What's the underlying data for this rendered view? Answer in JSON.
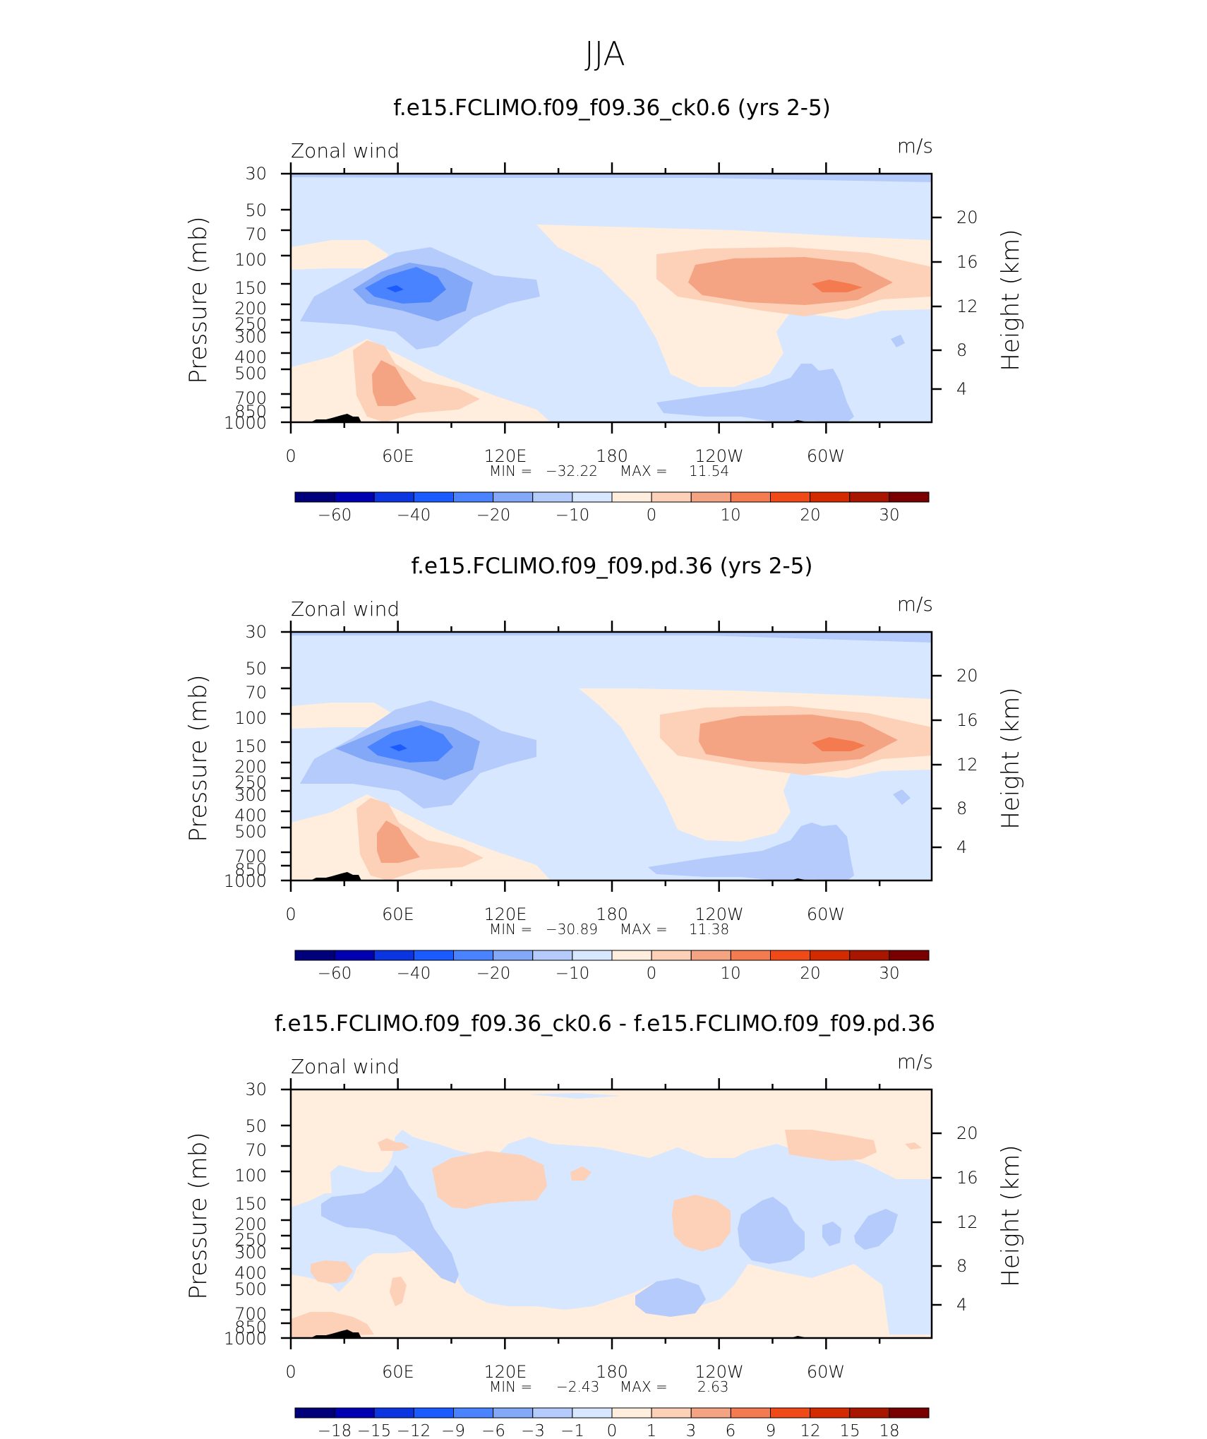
{
  "figure": {
    "title": "JJA"
  },
  "colors": {
    "wind_colorbar": [
      "#00007a",
      "#0000b3",
      "#0b35e0",
      "#1a5bff",
      "#4a83ff",
      "#84a8f8",
      "#b4cbfb",
      "#d6e7ff",
      "#ffeedd",
      "#fdd0b8",
      "#f5a483",
      "#f47a50",
      "#f04a18",
      "#d42a00",
      "#a81600",
      "#7a0000"
    ],
    "diff_colorbar": [
      "#00007a",
      "#0000b3",
      "#0b35e0",
      "#1a5bff",
      "#4a83ff",
      "#84a8f8",
      "#b4cbfb",
      "#d6e7ff",
      "#ffeedd",
      "#fdd0b8",
      "#f5a483",
      "#f47a50",
      "#f04a18",
      "#d42a00",
      "#a81600",
      "#7a0000"
    ],
    "topography": "#000000"
  },
  "chart_data": [
    {
      "type": "contour",
      "title": "f.e15.FCLIMO.f09_f09.36_ck0.6 (yrs 2-5)",
      "left_label": "Zonal wind",
      "units_label": "m/s",
      "ylabel": "Pressure (mb)",
      "ylabel_right": "Height (km)",
      "xticks": [
        "0",
        "60E",
        "120E",
        "180",
        "120W",
        "60W"
      ],
      "yticks": [
        "30",
        "50",
        "70",
        "100",
        "150",
        "200",
        "250",
        "300",
        "400",
        "500",
        "700",
        "850",
        "1000"
      ],
      "yticks_right": [
        "20",
        "16",
        "12",
        "8",
        "4"
      ],
      "min_label": "MIN =",
      "min": "−32.22",
      "max_label": "MAX =",
      "max": "11.54",
      "colorbar_labels": [
        "−60",
        "−40",
        "−20",
        "−10",
        "0",
        "10",
        "20",
        "30"
      ]
    },
    {
      "type": "contour",
      "title": "f.e15.FCLIMO.f09_f09.pd.36 (yrs 2-5)",
      "left_label": "Zonal wind",
      "units_label": "m/s",
      "ylabel": "Pressure (mb)",
      "ylabel_right": "Height (km)",
      "xticks": [
        "0",
        "60E",
        "120E",
        "180",
        "120W",
        "60W"
      ],
      "yticks": [
        "30",
        "50",
        "70",
        "100",
        "150",
        "200",
        "250",
        "300",
        "400",
        "500",
        "700",
        "850",
        "1000"
      ],
      "yticks_right": [
        "20",
        "16",
        "12",
        "8",
        "4"
      ],
      "min_label": "MIN =",
      "min": "−30.89",
      "max_label": "MAX =",
      "max": "11.38",
      "colorbar_labels": [
        "−60",
        "−40",
        "−20",
        "−10",
        "0",
        "10",
        "20",
        "30"
      ]
    },
    {
      "type": "contour",
      "title": "f.e15.FCLIMO.f09_f09.36_ck0.6 - f.e15.FCLIMO.f09_f09.pd.36",
      "left_label": "Zonal wind",
      "units_label": "m/s",
      "ylabel": "Pressure (mb)",
      "ylabel_right": "Height (km)",
      "xticks": [
        "0",
        "60E",
        "120E",
        "180",
        "120W",
        "60W"
      ],
      "yticks": [
        "30",
        "50",
        "70",
        "100",
        "150",
        "200",
        "250",
        "300",
        "400",
        "500",
        "700",
        "850",
        "1000"
      ],
      "yticks_right": [
        "20",
        "16",
        "12",
        "8",
        "4"
      ],
      "min_label": "MIN =",
      "min": "−2.43",
      "max_label": "MAX =",
      "max": "2.63",
      "colorbar_labels": [
        "−18",
        "−15",
        "−12",
        "−9",
        "−6",
        "−3",
        "−1",
        "0",
        "1",
        "3",
        "6",
        "9",
        "12",
        "15",
        "18"
      ]
    }
  ]
}
